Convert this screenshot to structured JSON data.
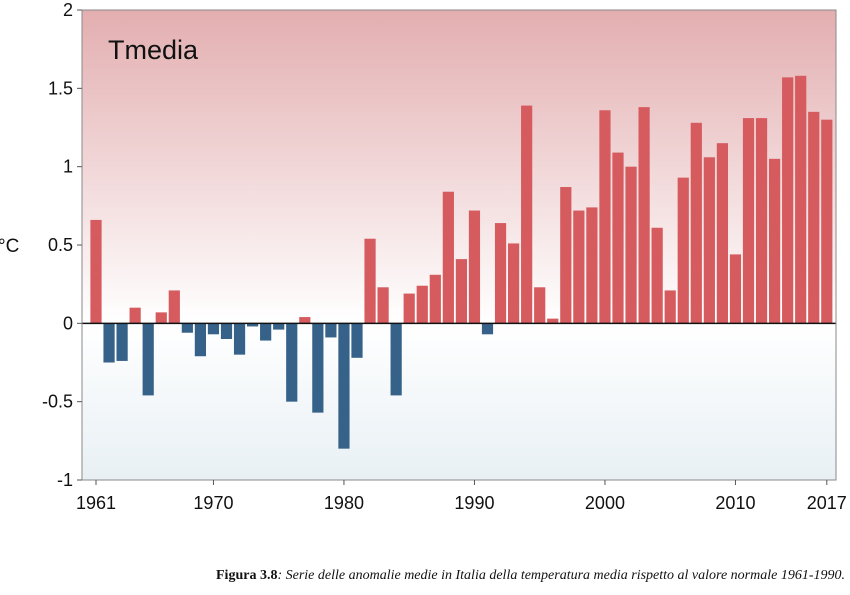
{
  "chart_data": {
    "type": "bar",
    "title": "Tmedia",
    "ylabel": "°C",
    "xlabel": "",
    "ylim": [
      -1,
      2
    ],
    "yticks": [
      "2",
      "1.5",
      "1",
      "0.5",
      "0",
      "-0.5",
      "-1"
    ],
    "ytick_values": [
      2,
      1.5,
      1,
      0.5,
      0,
      -0.5,
      -1
    ],
    "xticks": [
      "1961",
      "1970",
      "1980",
      "1990",
      "2000",
      "2010",
      "2017"
    ],
    "xtick_values": [
      1961,
      1970,
      1980,
      1990,
      2000,
      2010,
      2017
    ],
    "grid": false,
    "positive_color": "#d55b5e",
    "negative_color": "#36628a",
    "background_top_color": "#e3aeb0",
    "background_bottom_color": "#e8f0f4",
    "years": [
      1961,
      1962,
      1963,
      1964,
      1965,
      1966,
      1967,
      1968,
      1969,
      1970,
      1971,
      1972,
      1973,
      1974,
      1975,
      1976,
      1977,
      1978,
      1979,
      1980,
      1981,
      1982,
      1983,
      1984,
      1985,
      1986,
      1987,
      1988,
      1989,
      1990,
      1991,
      1992,
      1993,
      1994,
      1995,
      1996,
      1997,
      1998,
      1999,
      2000,
      2001,
      2002,
      2003,
      2004,
      2005,
      2006,
      2007,
      2008,
      2009,
      2010,
      2011,
      2012,
      2013,
      2014,
      2015,
      2016,
      2017
    ],
    "values": [
      0.66,
      -0.25,
      -0.24,
      0.1,
      -0.46,
      0.07,
      0.21,
      -0.06,
      -0.21,
      -0.07,
      -0.1,
      -0.2,
      -0.02,
      -0.11,
      -0.04,
      -0.5,
      0.04,
      -0.57,
      -0.09,
      -0.8,
      -0.22,
      0.54,
      0.23,
      -0.46,
      0.19,
      0.24,
      0.31,
      0.84,
      0.41,
      0.72,
      -0.07,
      0.64,
      0.51,
      1.39,
      0.23,
      0.03,
      0.87,
      0.72,
      0.74,
      1.36,
      1.09,
      1.0,
      1.38,
      0.61,
      0.21,
      0.93,
      1.28,
      1.06,
      1.15,
      0.44,
      1.31,
      1.31,
      1.05,
      1.57,
      1.58,
      1.35,
      1.3
    ]
  },
  "caption": {
    "label": "Figura 3.8",
    "text": ": Serie delle anomalie medie in Italia della temperatura media rispetto al valore normale 1961-1990."
  }
}
